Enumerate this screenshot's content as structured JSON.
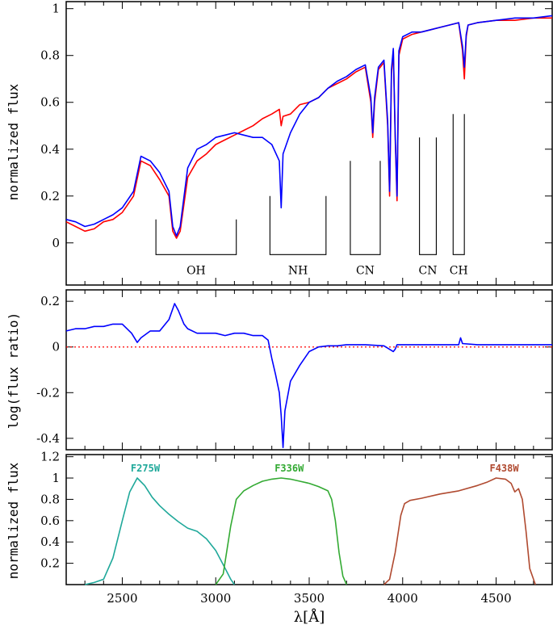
{
  "chart_data": [
    {
      "type": "line",
      "ylabel": "normalized flux",
      "xlim": [
        2200,
        4800
      ],
      "ylim": [
        -0.18,
        1.03
      ],
      "yticks": [
        0,
        0.2,
        0.4,
        0.6,
        0.8,
        1
      ],
      "ytick_labels": [
        "0",
        "0.2",
        "0.4",
        "0.6",
        "0.8",
        "1"
      ],
      "series": [
        {
          "color": "#ff0000",
          "x": [
            2200,
            2250,
            2300,
            2350,
            2400,
            2450,
            2500,
            2560,
            2600,
            2650,
            2700,
            2750,
            2770,
            2790,
            2810,
            2850,
            2900,
            2950,
            3000,
            3050,
            3100,
            3150,
            3200,
            3250,
            3300,
            3340,
            3350,
            3360,
            3400,
            3450,
            3500,
            3550,
            3600,
            3650,
            3700,
            3750,
            3800,
            3830,
            3840,
            3850,
            3870,
            3900,
            3920,
            3930,
            3940,
            3950,
            3960,
            3970,
            3980,
            4000,
            4050,
            4100,
            4150,
            4200,
            4250,
            4300,
            4320,
            4330,
            4340,
            4350,
            4400,
            4500,
            4600,
            4700,
            4800
          ],
          "y": [
            0.09,
            0.07,
            0.05,
            0.06,
            0.09,
            0.1,
            0.13,
            0.2,
            0.35,
            0.33,
            0.27,
            0.2,
            0.05,
            0.02,
            0.05,
            0.28,
            0.35,
            0.38,
            0.42,
            0.44,
            0.46,
            0.48,
            0.5,
            0.53,
            0.55,
            0.57,
            0.5,
            0.54,
            0.55,
            0.59,
            0.6,
            0.62,
            0.66,
            0.68,
            0.7,
            0.73,
            0.75,
            0.6,
            0.45,
            0.6,
            0.74,
            0.77,
            0.5,
            0.2,
            0.72,
            0.82,
            0.45,
            0.18,
            0.8,
            0.87,
            0.89,
            0.9,
            0.91,
            0.92,
            0.93,
            0.94,
            0.82,
            0.7,
            0.88,
            0.93,
            0.94,
            0.95,
            0.95,
            0.96,
            0.96
          ]
        },
        {
          "color": "#0000ff",
          "x": [
            2200,
            2250,
            2300,
            2350,
            2400,
            2450,
            2500,
            2560,
            2600,
            2650,
            2700,
            2750,
            2770,
            2790,
            2810,
            2850,
            2900,
            2950,
            3000,
            3050,
            3100,
            3150,
            3200,
            3250,
            3300,
            3340,
            3350,
            3360,
            3400,
            3450,
            3500,
            3550,
            3600,
            3650,
            3700,
            3750,
            3800,
            3830,
            3840,
            3850,
            3870,
            3900,
            3920,
            3930,
            3940,
            3950,
            3960,
            3970,
            3980,
            4000,
            4050,
            4100,
            4150,
            4200,
            4250,
            4300,
            4320,
            4330,
            4340,
            4350,
            4400,
            4500,
            4600,
            4700,
            4800
          ],
          "y": [
            0.1,
            0.09,
            0.07,
            0.08,
            0.1,
            0.12,
            0.15,
            0.22,
            0.37,
            0.35,
            0.3,
            0.22,
            0.07,
            0.03,
            0.07,
            0.32,
            0.4,
            0.42,
            0.45,
            0.46,
            0.47,
            0.46,
            0.45,
            0.45,
            0.42,
            0.35,
            0.15,
            0.38,
            0.47,
            0.55,
            0.6,
            0.62,
            0.66,
            0.69,
            0.71,
            0.74,
            0.76,
            0.62,
            0.47,
            0.62,
            0.75,
            0.78,
            0.52,
            0.22,
            0.74,
            0.83,
            0.47,
            0.2,
            0.82,
            0.88,
            0.9,
            0.9,
            0.91,
            0.92,
            0.93,
            0.94,
            0.84,
            0.75,
            0.89,
            0.93,
            0.94,
            0.95,
            0.96,
            0.96,
            0.97
          ]
        }
      ],
      "annotations": [
        {
          "label": "OH",
          "x1": 2680,
          "x2": 3110,
          "y_top": 0.1
        },
        {
          "label": "NH",
          "x1": 3290,
          "x2": 3590,
          "y_top": 0.2
        },
        {
          "label": "CN",
          "x1": 3720,
          "x2": 3880,
          "y_top": 0.35
        },
        {
          "label": "CN",
          "x1": 4090,
          "x2": 4180,
          "y_top": 0.45
        },
        {
          "label": "CH",
          "x1": 4270,
          "x2": 4330,
          "y_top": 0.55
        }
      ]
    },
    {
      "type": "line",
      "ylabel": "log(flux ratio)",
      "xlim": [
        2200,
        4800
      ],
      "ylim": [
        -0.45,
        0.25
      ],
      "yticks": [
        0.2,
        0,
        -0.2,
        -0.4
      ],
      "ytick_labels": [
        "0.2",
        "0",
        "-0.2",
        "-0.4"
      ],
      "reference_line": {
        "y": 0,
        "color": "#ff0000",
        "style": "dotted"
      },
      "series": [
        {
          "color": "#0000ff",
          "x": [
            2200,
            2250,
            2300,
            2350,
            2400,
            2450,
            2500,
            2550,
            2580,
            2600,
            2650,
            2700,
            2750,
            2780,
            2800,
            2830,
            2850,
            2900,
            2950,
            3000,
            3050,
            3100,
            3150,
            3200,
            3250,
            3280,
            3300,
            3320,
            3340,
            3350,
            3360,
            3370,
            3400,
            3450,
            3500,
            3550,
            3600,
            3650,
            3700,
            3800,
            3900,
            3950,
            3960,
            3970,
            4000,
            4100,
            4200,
            4300,
            4310,
            4320,
            4400,
            4500,
            4600,
            4700,
            4800
          ],
          "y": [
            0.07,
            0.08,
            0.08,
            0.09,
            0.09,
            0.1,
            0.1,
            0.06,
            0.02,
            0.04,
            0.07,
            0.07,
            0.12,
            0.19,
            0.16,
            0.1,
            0.08,
            0.06,
            0.06,
            0.06,
            0.05,
            0.06,
            0.06,
            0.05,
            0.05,
            0.03,
            -0.05,
            -0.12,
            -0.2,
            -0.3,
            -0.44,
            -0.28,
            -0.15,
            -0.08,
            -0.02,
            0.0,
            0.005,
            0.005,
            0.01,
            0.01,
            0.005,
            -0.02,
            -0.01,
            0.01,
            0.01,
            0.01,
            0.01,
            0.01,
            0.04,
            0.015,
            0.01,
            0.01,
            0.01,
            0.01,
            0.01
          ]
        }
      ]
    },
    {
      "type": "line",
      "ylabel": "normalized flux",
      "xlabel": "λ[Å]",
      "xlim": [
        2200,
        4800
      ],
      "ylim": [
        0,
        1.22
      ],
      "yticks": [
        0.2,
        0.4,
        0.6,
        0.8,
        1,
        1.2
      ],
      "ytick_labels": [
        "0.2",
        "0.4",
        "0.6",
        "0.8",
        "1",
        "1.2"
      ],
      "xticks": [
        2500,
        3000,
        3500,
        4000,
        4500
      ],
      "xtick_labels": [
        "2500",
        "3000",
        "3500",
        "4000",
        "4500"
      ],
      "series": [
        {
          "name": "F275W",
          "color": "#1fa89a",
          "x": [
            2300,
            2350,
            2400,
            2450,
            2500,
            2540,
            2580,
            2620,
            2660,
            2700,
            2750,
            2800,
            2850,
            2900,
            2950,
            3000,
            3030,
            3060,
            3080,
            3100
          ],
          "y": [
            0.0,
            0.02,
            0.05,
            0.25,
            0.6,
            0.87,
            1.0,
            0.93,
            0.82,
            0.74,
            0.66,
            0.59,
            0.53,
            0.5,
            0.43,
            0.32,
            0.22,
            0.12,
            0.05,
            0.0
          ]
        },
        {
          "name": "F336W",
          "color": "#33aa33",
          "x": [
            3000,
            3040,
            3080,
            3110,
            3150,
            3200,
            3250,
            3300,
            3350,
            3400,
            3450,
            3500,
            3550,
            3600,
            3620,
            3640,
            3660,
            3680,
            3700
          ],
          "y": [
            0.0,
            0.1,
            0.55,
            0.8,
            0.88,
            0.93,
            0.97,
            0.99,
            1.0,
            0.99,
            0.97,
            0.95,
            0.92,
            0.88,
            0.8,
            0.6,
            0.3,
            0.08,
            0.0
          ]
        },
        {
          "name": "F438W",
          "color": "#b04a30",
          "x": [
            3900,
            3930,
            3960,
            3990,
            4010,
            4040,
            4100,
            4200,
            4300,
            4400,
            4450,
            4500,
            4550,
            4580,
            4600,
            4620,
            4640,
            4660,
            4680,
            4710
          ],
          "y": [
            0.0,
            0.05,
            0.3,
            0.65,
            0.76,
            0.79,
            0.81,
            0.85,
            0.88,
            0.93,
            0.96,
            1.0,
            0.99,
            0.95,
            0.87,
            0.9,
            0.8,
            0.5,
            0.15,
            0.0
          ]
        }
      ]
    }
  ]
}
